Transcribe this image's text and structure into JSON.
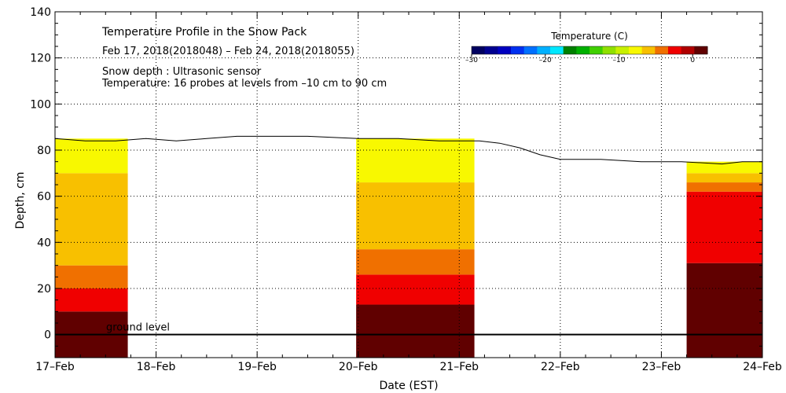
{
  "chart_data": {
    "type": "heatmap",
    "title": "Temperature Profile in the Snow Pack",
    "subtitle": "Feb 17, 2018(2018048) – Feb 24, 2018(2018055)",
    "notes": [
      "Snow depth : Ultrasonic sensor",
      "Temperature: 16 probes at levels from –10 cm to 90 cm"
    ],
    "xlabel": "Date (EST)",
    "ylabel": "Depth, cm",
    "xlim": [
      0,
      7
    ],
    "ylim": [
      -10,
      140
    ],
    "x_ticks": [
      {
        "value": 0,
        "label": "17–Feb"
      },
      {
        "value": 1,
        "label": "18–Feb"
      },
      {
        "value": 2,
        "label": "19–Feb"
      },
      {
        "value": 3,
        "label": "20–Feb"
      },
      {
        "value": 4,
        "label": "21–Feb"
      },
      {
        "value": 5,
        "label": "22–Feb"
      },
      {
        "value": 6,
        "label": "23–Feb"
      },
      {
        "value": 7,
        "label": "24–Feb"
      }
    ],
    "y_ticks": [
      0,
      20,
      40,
      60,
      80,
      100,
      120,
      140
    ],
    "grid": true,
    "ground_level_label": "ground level",
    "colorbar": {
      "title": "Temperature (C)",
      "range": [
        -30,
        2
      ],
      "tick_labels": [
        {
          "value": -30,
          "label": "–30"
        },
        {
          "value": -20,
          "label": "–20"
        },
        {
          "value": -10,
          "label": "–10"
        },
        {
          "value": 0,
          "label": "0"
        }
      ],
      "colors": [
        "#000060",
        "#000090",
        "#0000c0",
        "#0030f0",
        "#0070ff",
        "#00b0ff",
        "#00e8ff",
        "#008000",
        "#00b000",
        "#40d000",
        "#90e000",
        "#c8f000",
        "#f8f800",
        "#f8c000",
        "#f07000",
        "#f00000",
        "#b00000",
        "#600000"
      ]
    },
    "snow_depth": {
      "name": "Snow depth",
      "x": [
        0,
        0.3,
        0.6,
        0.9,
        1.2,
        1.5,
        1.8,
        2.0,
        2.5,
        3.0,
        3.4,
        3.8,
        4.0,
        4.2,
        4.4,
        4.6,
        4.8,
        5.0,
        5.4,
        5.8,
        6.2,
        6.6,
        6.8,
        7.0
      ],
      "y": [
        85,
        84,
        84,
        85,
        84,
        85,
        86,
        86,
        86,
        85,
        85,
        84,
        84,
        84,
        83,
        81,
        78,
        76,
        76,
        75,
        75,
        74,
        75,
        75
      ]
    },
    "temperature_segments": [
      {
        "x_start": 0,
        "x_end": 0.72,
        "bands": [
          {
            "from": -10,
            "to": 10,
            "temp": 0.5
          },
          {
            "from": 10,
            "to": 20,
            "temp": -2
          },
          {
            "from": 20,
            "to": 30,
            "temp": -4
          },
          {
            "from": 30,
            "to": 70,
            "temp": -6
          },
          {
            "from": 70,
            "to": 85,
            "temp": -8
          }
        ]
      },
      {
        "x_start": 2.98,
        "x_end": 4.15,
        "bands": [
          {
            "from": -10,
            "to": 13,
            "temp": 0.5
          },
          {
            "from": 13,
            "to": 26,
            "temp": -2
          },
          {
            "from": 26,
            "to": 37,
            "temp": -4
          },
          {
            "from": 37,
            "to": 66,
            "temp": -6
          },
          {
            "from": 66,
            "to": 85,
            "temp": -8
          }
        ]
      },
      {
        "x_start": 6.25,
        "x_end": 7.0,
        "bands": [
          {
            "from": -10,
            "to": 31,
            "temp": 0.5
          },
          {
            "from": 31,
            "to": 62,
            "temp": -2
          },
          {
            "from": 62,
            "to": 66,
            "temp": -4
          },
          {
            "from": 66,
            "to": 70,
            "temp": -6
          },
          {
            "from": 70,
            "to": 75,
            "temp": -8
          }
        ]
      }
    ]
  }
}
